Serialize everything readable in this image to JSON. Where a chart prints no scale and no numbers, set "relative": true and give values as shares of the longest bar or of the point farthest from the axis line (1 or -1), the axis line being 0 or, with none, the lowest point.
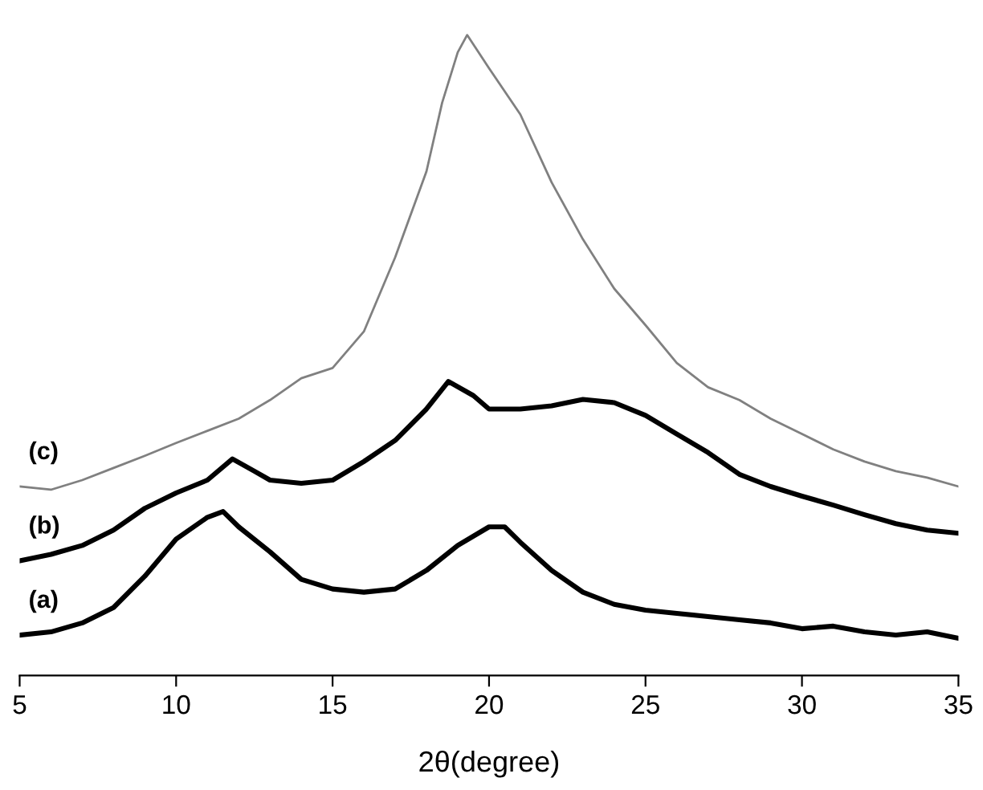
{
  "chart_data": {
    "type": "line",
    "relative": true,
    "xlabel": "2θ(degree)",
    "xlim": [
      5,
      35
    ],
    "xticks": [
      5,
      10,
      15,
      20,
      25,
      30,
      35
    ],
    "grid": false,
    "legend": false,
    "marker": "none",
    "line_style": "solid",
    "tick_labels": "x",
    "series": [
      {
        "name": "(a)",
        "color": "#000000",
        "x": [
          5,
          6,
          7,
          8,
          9,
          10,
          11,
          11.5,
          12,
          13,
          14,
          15,
          16,
          17,
          18,
          19,
          20,
          20.5,
          21,
          22,
          23,
          24,
          25,
          26,
          27,
          28,
          29,
          30,
          31,
          32,
          33,
          34,
          35
        ],
        "values": [
          0.063,
          0.068,
          0.082,
          0.106,
          0.155,
          0.213,
          0.247,
          0.256,
          0.232,
          0.193,
          0.15,
          0.135,
          0.13,
          0.135,
          0.164,
          0.203,
          0.232,
          0.232,
          0.208,
          0.164,
          0.13,
          0.111,
          0.102,
          0.097,
          0.092,
          0.087,
          0.082,
          0.073,
          0.077,
          0.068,
          0.063,
          0.068,
          0.058
        ]
      },
      {
        "name": "(b)",
        "color": "#000000",
        "x": [
          5,
          6,
          7,
          8,
          9,
          10,
          11,
          11.8,
          12.5,
          13,
          14,
          15,
          16,
          17,
          18,
          18.7,
          19.5,
          20,
          21,
          22,
          23,
          24,
          25,
          26,
          27,
          28,
          29,
          30,
          31,
          32,
          33,
          34,
          35
        ],
        "values": [
          0.179,
          0.189,
          0.203,
          0.227,
          0.261,
          0.285,
          0.305,
          0.338,
          0.319,
          0.305,
          0.3,
          0.305,
          0.334,
          0.367,
          0.416,
          0.459,
          0.437,
          0.416,
          0.416,
          0.421,
          0.431,
          0.426,
          0.406,
          0.377,
          0.348,
          0.314,
          0.295,
          0.28,
          0.266,
          0.251,
          0.237,
          0.227,
          0.222
        ]
      },
      {
        "name": "(c)",
        "color": "#808080",
        "x": [
          5,
          6,
          7,
          8,
          9,
          10,
          11,
          12,
          13,
          14,
          15,
          16,
          17,
          18,
          18.5,
          19,
          19.3,
          20,
          21,
          22,
          23,
          24,
          25,
          26,
          27,
          28,
          29,
          30,
          31,
          32,
          33,
          34,
          35
        ],
        "values": [
          0.295,
          0.29,
          0.305,
          0.324,
          0.343,
          0.363,
          0.382,
          0.401,
          0.43,
          0.464,
          0.48,
          0.537,
          0.653,
          0.787,
          0.894,
          0.973,
          1.0,
          0.948,
          0.876,
          0.77,
          0.681,
          0.604,
          0.547,
          0.488,
          0.45,
          0.43,
          0.401,
          0.377,
          0.353,
          0.334,
          0.319,
          0.309,
          0.295
        ]
      }
    ]
  }
}
